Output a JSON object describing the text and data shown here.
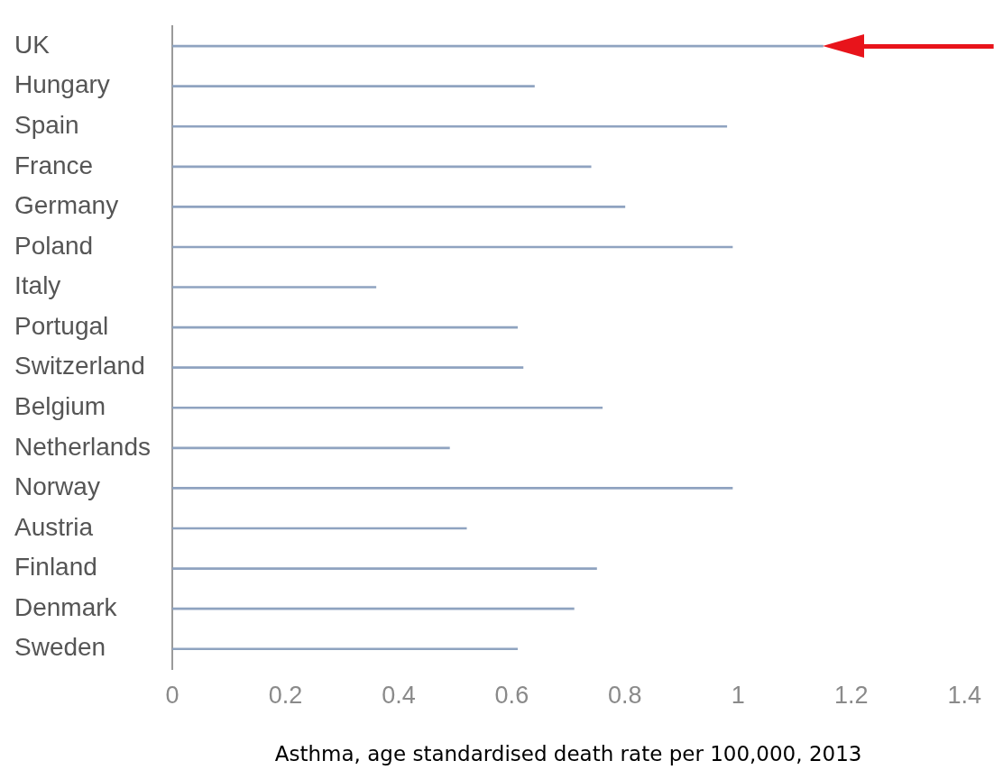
{
  "chart_data": {
    "type": "bar",
    "orientation": "horizontal",
    "xlabel": "Asthma, age standardised death rate per 100,000, 2013",
    "categories": [
      "UK",
      "Hungary",
      "Spain",
      "France",
      "Germany",
      "Poland",
      "Italy",
      "Portugal",
      "Switzerland",
      "Belgium",
      "Netherlands",
      "Norway",
      "Austria",
      "Finland",
      "Denmark",
      "Sweden"
    ],
    "values": [
      1.15,
      0.64,
      0.98,
      0.74,
      0.8,
      0.99,
      0.36,
      0.61,
      0.62,
      0.76,
      0.49,
      0.99,
      0.52,
      0.75,
      0.71,
      0.61
    ],
    "color": "#8fa3c0",
    "xlim": [
      0,
      1.4
    ],
    "xticks": [
      0,
      0.2,
      0.4,
      0.6,
      0.8,
      1,
      1.2,
      1.4
    ],
    "grid": false,
    "legend": false
  }
}
